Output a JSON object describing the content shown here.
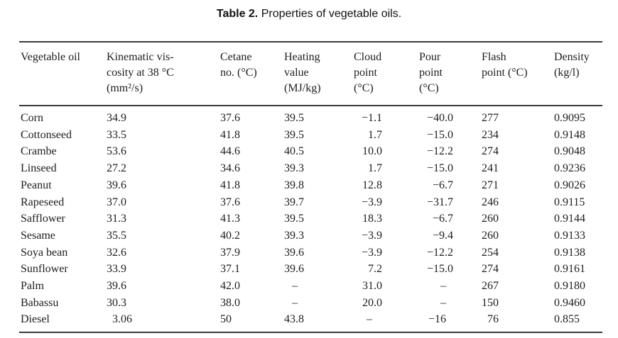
{
  "caption": {
    "label": "Table 2.",
    "text": " Properties of vegetable oils."
  },
  "table": {
    "columns": [
      {
        "id": "vegetable-oil",
        "header": "Vegetable oil"
      },
      {
        "id": "kinematic-viscosity",
        "header": "Kinematic vis-\ncosity at 38 °C\n(mm²/s)"
      },
      {
        "id": "cetane-no",
        "header": "Cetane\nno. (°C)"
      },
      {
        "id": "heating-value",
        "header": "Heating\nvalue\n(MJ/kg)"
      },
      {
        "id": "cloud-point",
        "header": "Cloud\npoint\n(°C)"
      },
      {
        "id": "pour-point",
        "header": "Pour\npoint\n(°C)"
      },
      {
        "id": "flash-point",
        "header": "Flash\npoint (°C)"
      },
      {
        "id": "density",
        "header": "Density\n(kg/l)"
      }
    ],
    "rows": [
      [
        "Corn",
        "34.9",
        "37.6",
        "39.5",
        "−1.1",
        "−40.0",
        "277",
        "0.9095"
      ],
      [
        "Cottonseed",
        "33.5",
        "41.8",
        "39.5",
        "1.7",
        "−15.0",
        "234",
        "0.9148"
      ],
      [
        "Crambe",
        "53.6",
        "44.6",
        "40.5",
        "10.0",
        "−12.2",
        "274",
        "0.9048"
      ],
      [
        "Linseed",
        "27.2",
        "34.6",
        "39.3",
        "1.7",
        "−15.0",
        "241",
        "0.9236"
      ],
      [
        "Peanut",
        "39.6",
        "41.8",
        "39.8",
        "12.8",
        "−6.7",
        "271",
        "0.9026"
      ],
      [
        "Rapeseed",
        "37.0",
        "37.6",
        "39.7",
        "−3.9",
        "−31.7",
        "246",
        "0.9115"
      ],
      [
        "Safflower",
        "31.3",
        "41.3",
        "39.5",
        "18.3",
        "−6.7",
        "260",
        "0.9144"
      ],
      [
        "Sesame",
        "35.5",
        "40.2",
        "39.3",
        "−3.9",
        "−9.4",
        "260",
        "0.9133"
      ],
      [
        "Soya bean",
        "32.6",
        "37.9",
        "39.6",
        "−3.9",
        "−12.2",
        "254",
        "0.9138"
      ],
      [
        "Sunflower",
        "33.9",
        "37.1",
        "39.6",
        "7.2",
        "−15.0",
        "274",
        "0.9161"
      ],
      [
        "Palm",
        "39.6",
        "42.0",
        "–",
        "31.0",
        "–",
        "267",
        "0.9180"
      ],
      [
        "Babassu",
        "30.3",
        "38.0",
        "–",
        "20.0",
        "–",
        "150",
        "0.9460"
      ],
      [
        "Diesel",
        "3.06",
        "50",
        "43.8",
        "–",
        "−16",
        "76",
        "0.855"
      ]
    ]
  }
}
